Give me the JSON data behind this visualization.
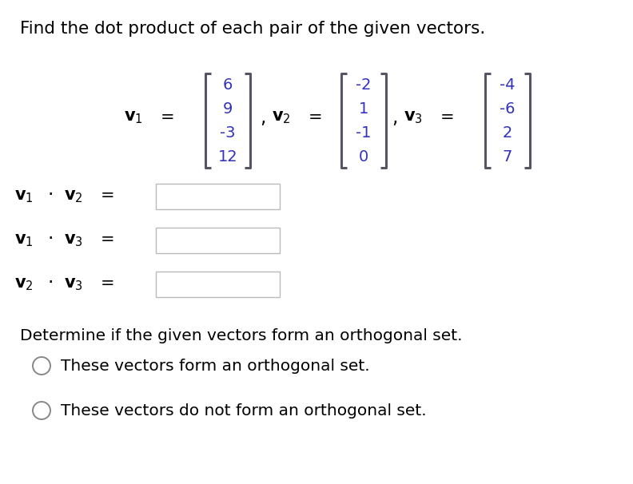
{
  "title": "Find the dot product of each pair of the given vectors.",
  "title_fontsize": 15.5,
  "title_color": "#000000",
  "background_color": "#ffffff",
  "v1": [
    "6",
    "9",
    "-3",
    "12"
  ],
  "v2": [
    "-2",
    "1",
    "-1",
    "0"
  ],
  "v3": [
    "-4",
    "-6",
    "2",
    "7"
  ],
  "vector_color": "#3333bb",
  "bracket_color": "#555566",
  "label_color": "#000000",
  "determine_text": "Determine if the given vectors form an orthogonal set.",
  "option1": "These vectors form an orthogonal set.",
  "option2": "These vectors do not form an orthogonal set.",
  "text_color": "#000000",
  "body_fontsize": 14.5,
  "vec_label_fontsize": 15,
  "num_fontsize": 14,
  "dot_label_fontsize": 15
}
